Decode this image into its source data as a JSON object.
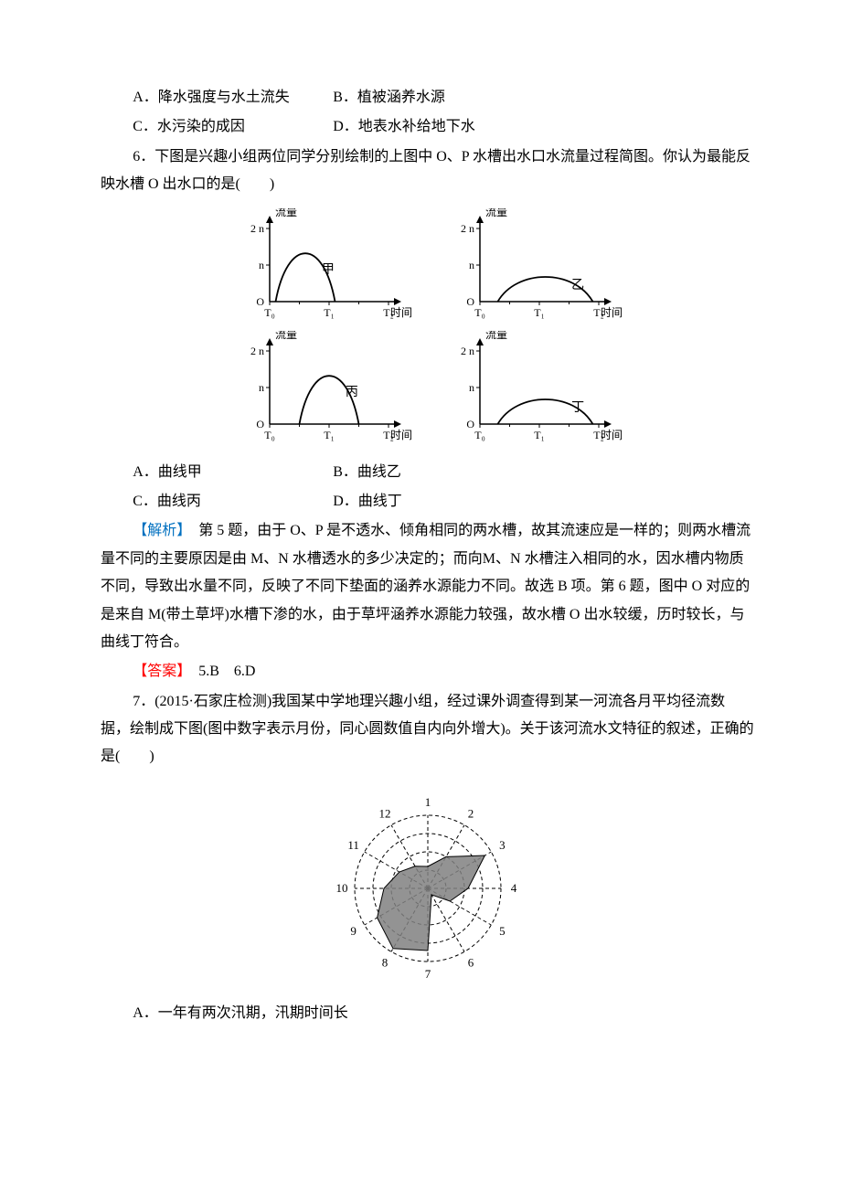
{
  "q5": {
    "options": {
      "A": "A．降水强度与水土流失",
      "B": "B．植被涵养水源",
      "C": "C．水污染的成因",
      "D": "D．地表水补给地下水"
    }
  },
  "q6": {
    "stem": "6．下图是兴趣小组两位同学分别绘制的上图中 O、P 水槽出水口水流量过程简图。你认为最能反映水槽 O 出水口的是(　　)",
    "options": {
      "A": "A．曲线甲",
      "B": "B．曲线乙",
      "C": "C．曲线丙",
      "D": "D．曲线丁"
    }
  },
  "charts": {
    "y_label": "流量",
    "x_label": "时间",
    "y_ticks": [
      "O",
      "n",
      "2 n"
    ],
    "x_ticks": [
      "T₀",
      "T₁",
      "T₂"
    ],
    "axis_color": "#000000",
    "curve_color": "#000000",
    "font_size": 12,
    "items": [
      {
        "label": "甲",
        "x_peak": 0.3,
        "width": 0.5,
        "height": 0.88
      },
      {
        "label": "乙",
        "x_peak": 0.55,
        "width": 0.8,
        "height": 0.45
      },
      {
        "label": "丙",
        "x_peak": 0.5,
        "width": 0.5,
        "height": 0.88
      },
      {
        "label": "丁",
        "x_peak": 0.55,
        "width": 0.8,
        "height": 0.45
      }
    ]
  },
  "analysis": {
    "label": "【解析】",
    "text": "　第 5 题，由于 O、P 是不透水、倾角相同的两水槽，故其流速应是一样的；则两水槽流量不同的主要原因是由 M、N 水槽透水的多少决定的；而向M、N 水槽注入相同的水，因水槽内物质不同，导致出水量不同，反映了不同下垫面的涵养水源能力不同。故选 B 项。第 6 题，图中 O 对应的是来自 M(带土草坪)水槽下渗的水，由于草坪涵养水源能力较强，故水槽 O 出水较缓，历时较长，与曲线丁符合。"
  },
  "answer": {
    "label": "【答案】",
    "text": "　5.B　6.D"
  },
  "q7": {
    "stem": "7．(2015·石家庄检测)我国某中学地理兴趣小组，经过课外调查得到某一河流各月平均径流数据，绘制成下图(图中数字表示月份，同心圆数值自内向外增大)。关于该河流水文特征的叙述，正确的是(　　)",
    "optA": "A．一年有两次汛期，汛期时间长"
  },
  "radar": {
    "months": [
      "1",
      "2",
      "3",
      "4",
      "5",
      "6",
      "7",
      "8",
      "9",
      "10",
      "11",
      "12"
    ],
    "rings": 4,
    "ring_dash": "4,3",
    "spoke_dash": "4,3",
    "stroke_color": "#000000",
    "fill_color": "#808080",
    "fill_opacity": 0.85,
    "label_fontsize": 13,
    "values": [
      0.3,
      0.5,
      0.9,
      0.55,
      0.35,
      0.1,
      0.85,
      0.95,
      0.8,
      0.6,
      0.45,
      0.35
    ]
  }
}
